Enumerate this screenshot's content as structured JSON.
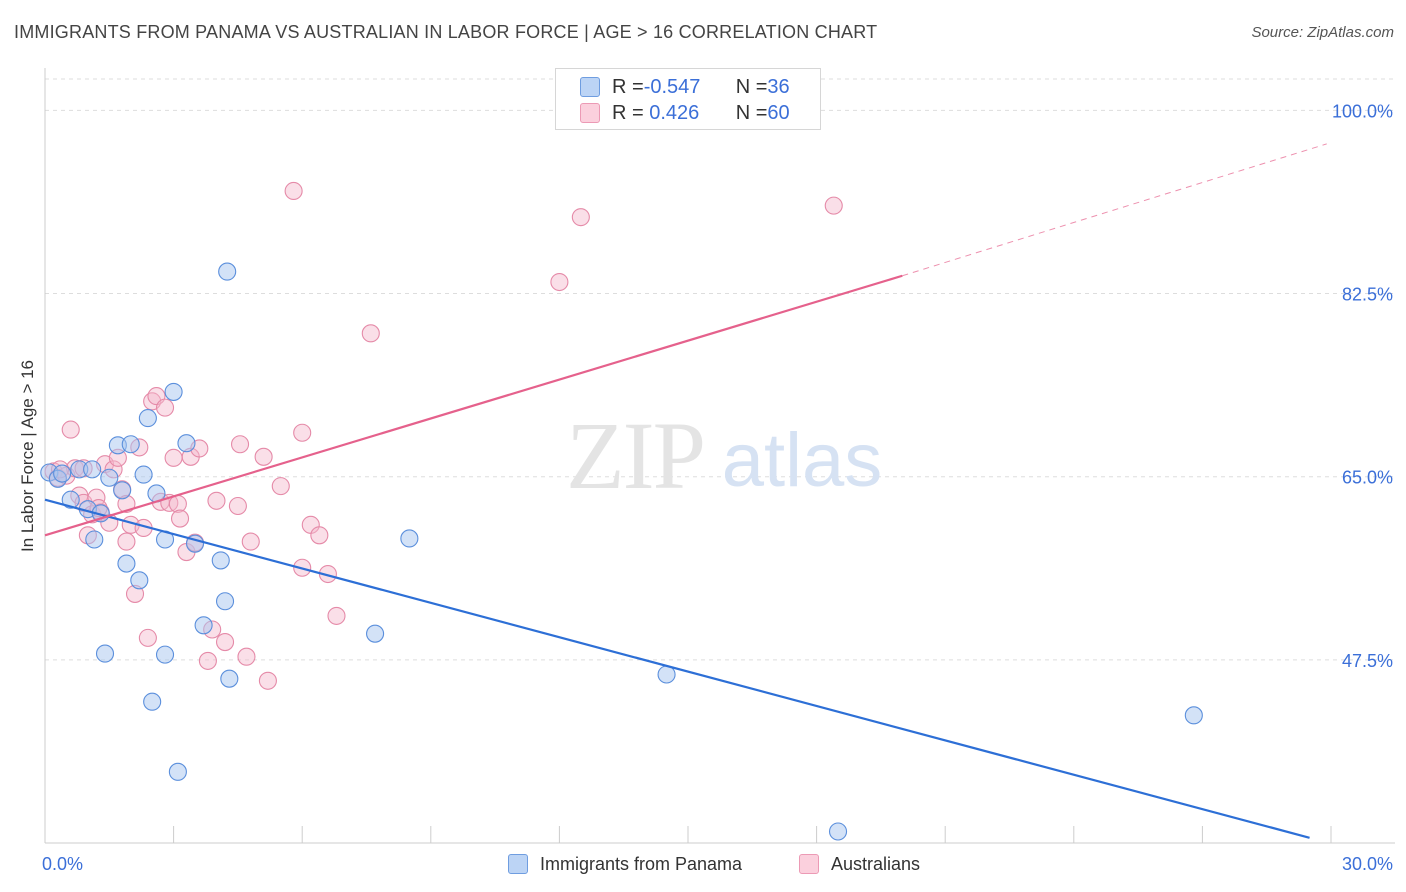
{
  "title": "IMMIGRANTS FROM PANAMA VS AUSTRALIAN IN LABOR FORCE | AGE > 16 CORRELATION CHART",
  "source": "Source: ZipAtlas.com",
  "watermark": {
    "zip": "ZIP",
    "atlas": "atlas"
  },
  "legend_top": [
    {
      "r_label": "R = ",
      "r_value": "-0.547",
      "n_label": "N = ",
      "n_value": "36"
    },
    {
      "r_label": "R = ",
      "r_value": " 0.426",
      "n_label": "N = ",
      "n_value": "60"
    }
  ],
  "colors": {
    "blue_fill": "#a8c6f0",
    "blue_stroke": "#5b8fdc",
    "blue_line": "#2d6fd6",
    "pink_fill": "#f5b8cb",
    "pink_stroke": "#e58aa8",
    "pink_line": "#e5618c",
    "axis_text": "#3b6fd8",
    "grid": "#dddddd"
  },
  "chart_data": {
    "type": "scatter",
    "title": "IMMIGRANTS FROM PANAMA VS AUSTRALIAN IN LABOR FORCE | AGE > 16 CORRELATION CHART",
    "xlabel": "",
    "ylabel": "In Labor Force | Age > 16",
    "xlim": [
      0,
      30
    ],
    "ylim": [
      30,
      103
    ],
    "x_ticks": [
      0,
      3,
      6,
      9,
      12,
      15,
      18,
      21,
      24,
      27,
      30
    ],
    "x_tick_labels": [
      {
        "value": 0,
        "label": "0.0%"
      },
      {
        "value": 30,
        "label": "30.0%"
      }
    ],
    "y_ticks": [
      {
        "value": 100,
        "label": "100.0%"
      },
      {
        "value": 82.5,
        "label": "82.5%"
      },
      {
        "value": 65,
        "label": "65.0%"
      },
      {
        "value": 47.5,
        "label": "47.5%"
      }
    ],
    "grid": true,
    "legend_position": "bottom-center",
    "series": [
      {
        "name": "Immigrants from Panama",
        "color": "#5b8fdc",
        "points": [
          [
            0.1,
            65.4
          ],
          [
            0.3,
            64.8
          ],
          [
            0.4,
            65.3
          ],
          [
            0.6,
            62.8
          ],
          [
            0.8,
            65.7
          ],
          [
            1.0,
            61.9
          ],
          [
            1.1,
            65.7
          ],
          [
            1.15,
            59.0
          ],
          [
            1.3,
            61.5
          ],
          [
            1.4,
            48.1
          ],
          [
            1.5,
            64.9
          ],
          [
            1.7,
            68.0
          ],
          [
            1.8,
            63.7
          ],
          [
            1.9,
            56.7
          ],
          [
            2.0,
            68.1
          ],
          [
            2.2,
            55.1
          ],
          [
            2.4,
            70.6
          ],
          [
            2.5,
            43.5
          ],
          [
            2.6,
            63.4
          ],
          [
            2.8,
            59.0
          ],
          [
            2.8,
            48.0
          ],
          [
            3.0,
            73.1
          ],
          [
            3.1,
            36.8
          ],
          [
            3.3,
            68.2
          ],
          [
            3.5,
            58.6
          ],
          [
            3.7,
            50.8
          ],
          [
            4.1,
            57.0
          ],
          [
            4.2,
            53.1
          ],
          [
            4.25,
            84.6
          ],
          [
            4.3,
            45.7
          ],
          [
            7.7,
            50.0
          ],
          [
            8.5,
            59.1
          ],
          [
            14.5,
            46.1
          ],
          [
            26.8,
            42.2
          ],
          [
            18.5,
            31.1
          ],
          [
            2.3,
            65.2
          ]
        ],
        "trend": {
          "x1": 0,
          "y1": 62.8,
          "x2": 29.5,
          "y2": 30.5,
          "dashed_to_x": null
        }
      },
      {
        "name": "Australians",
        "color": "#e58aa8",
        "points": [
          [
            0.2,
            65.5
          ],
          [
            0.3,
            64.9
          ],
          [
            0.5,
            65.1
          ],
          [
            0.6,
            69.5
          ],
          [
            0.7,
            65.8
          ],
          [
            0.8,
            63.2
          ],
          [
            0.9,
            62.5
          ],
          [
            1.0,
            59.4
          ],
          [
            1.1,
            61.4
          ],
          [
            1.2,
            63.0
          ],
          [
            1.3,
            61.6
          ],
          [
            1.4,
            66.2
          ],
          [
            1.5,
            60.6
          ],
          [
            1.6,
            65.7
          ],
          [
            1.7,
            66.8
          ],
          [
            1.8,
            63.8
          ],
          [
            1.9,
            62.4
          ],
          [
            1.9,
            58.8
          ],
          [
            2.0,
            60.4
          ],
          [
            2.1,
            53.8
          ],
          [
            2.2,
            67.8
          ],
          [
            2.3,
            60.1
          ],
          [
            2.4,
            49.6
          ],
          [
            2.5,
            72.2
          ],
          [
            2.6,
            72.7
          ],
          [
            2.7,
            62.6
          ],
          [
            2.8,
            71.6
          ],
          [
            2.9,
            62.5
          ],
          [
            3.0,
            66.8
          ],
          [
            3.1,
            62.4
          ],
          [
            3.15,
            61.0
          ],
          [
            3.3,
            57.8
          ],
          [
            3.4,
            66.9
          ],
          [
            3.5,
            58.7
          ],
          [
            3.6,
            67.7
          ],
          [
            3.8,
            47.4
          ],
          [
            3.9,
            50.4
          ],
          [
            4.0,
            62.7
          ],
          [
            4.2,
            49.2
          ],
          [
            4.5,
            62.2
          ],
          [
            4.55,
            68.1
          ],
          [
            4.7,
            47.8
          ],
          [
            4.8,
            58.8
          ],
          [
            5.1,
            66.9
          ],
          [
            5.2,
            45.5
          ],
          [
            5.5,
            64.1
          ],
          [
            5.8,
            92.3
          ],
          [
            6.0,
            56.3
          ],
          [
            6.0,
            69.2
          ],
          [
            6.2,
            60.4
          ],
          [
            6.4,
            59.4
          ],
          [
            6.6,
            55.7
          ],
          [
            6.8,
            51.7
          ],
          [
            7.6,
            78.7
          ],
          [
            12.0,
            83.6
          ],
          [
            12.5,
            89.8
          ],
          [
            18.4,
            90.9
          ],
          [
            0.35,
            65.7
          ],
          [
            1.25,
            62.0
          ],
          [
            0.9,
            65.8
          ]
        ],
        "trend": {
          "x1": 0,
          "y1": 59.4,
          "x2": 20.0,
          "y2": 84.2,
          "dashed_to_x": 29.9,
          "dashed_to_y": 96.8
        }
      }
    ]
  }
}
